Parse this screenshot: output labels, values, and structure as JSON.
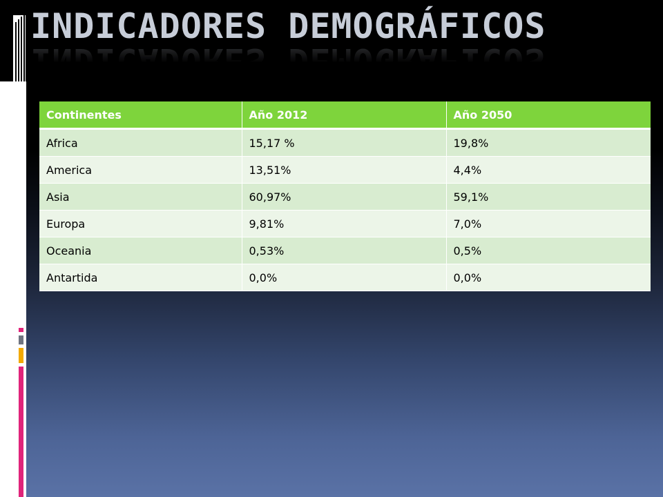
{
  "slide": {
    "title": "INDICADORES DEMOGRÁFICOS"
  },
  "table": {
    "headers": [
      "Continentes",
      "Año 2012",
      "Año 2050"
    ],
    "rows": [
      [
        "Africa",
        "15,17 %",
        "19,8%"
      ],
      [
        "America",
        "13,51%",
        "4,4%"
      ],
      [
        "Asia",
        "60,97%",
        "59,1%"
      ],
      [
        "Europa",
        "9,81%",
        "7,0%"
      ],
      [
        "Oceania",
        "0,53%",
        "0,5%"
      ],
      [
        "Antartida",
        "0,0%",
        "0,0%"
      ]
    ]
  },
  "colors": {
    "header_green": "#7ed43c",
    "row_light_green": "#d8ecd0",
    "row_lighter_green": "#ecf5e8",
    "accent_magenta": "#e0247a",
    "accent_orange": "#f2a900",
    "accent_gray": "#6f7480",
    "title_silver": "#c7cdd8"
  }
}
